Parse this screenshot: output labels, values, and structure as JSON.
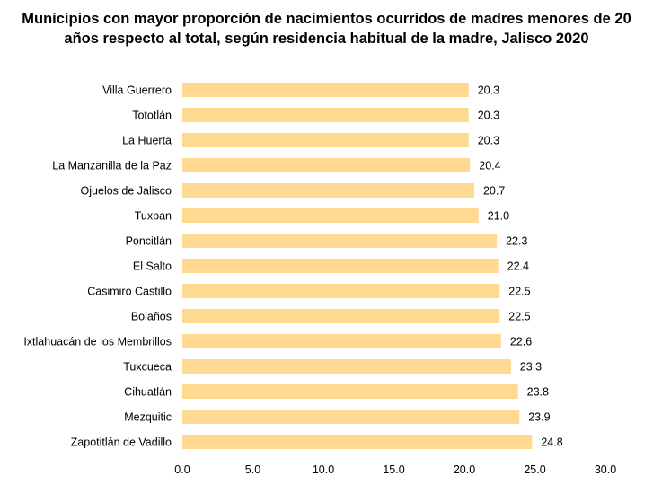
{
  "chart_data": {
    "type": "bar",
    "orientation": "horizontal",
    "title_line1": "Municipios con mayor proporción de nacimientos ocurridos de madres menores de 20",
    "title_line2": "años respecto al total, según residencia habitual de la madre, Jalisco 2020",
    "categories": [
      "Villa Guerrero",
      "Tototlán",
      "La Huerta",
      "La Manzanilla de la Paz",
      "Ojuelos de Jalisco",
      "Tuxpan",
      "Poncitlán",
      "El Salto",
      "Casimiro Castillo",
      "Bolaños",
      "Ixtlahuacán de los Membrillos",
      "Tuxcueca",
      "Cihuatlán",
      "Mezquitic",
      "Zapotitlán de Vadillo"
    ],
    "values": [
      20.3,
      20.3,
      20.3,
      20.4,
      20.7,
      21.0,
      22.3,
      22.4,
      22.5,
      22.5,
      22.6,
      23.3,
      23.8,
      23.9,
      24.8
    ],
    "value_labels": [
      "20.3",
      "20.3",
      "20.3",
      "20.4",
      "20.7",
      "21.0",
      "22.3",
      "22.4",
      "22.5",
      "22.5",
      "22.6",
      "23.3",
      "23.8",
      "23.9",
      "24.8"
    ],
    "xlim": [
      0,
      30
    ],
    "xticks": [
      "0.0",
      "5.0",
      "10.0",
      "15.0",
      "20.0",
      "25.0",
      "30.0"
    ],
    "xtick_values": [
      0,
      5,
      10,
      15,
      20,
      25,
      30
    ],
    "bar_color": "#FFD992",
    "grid": false
  }
}
